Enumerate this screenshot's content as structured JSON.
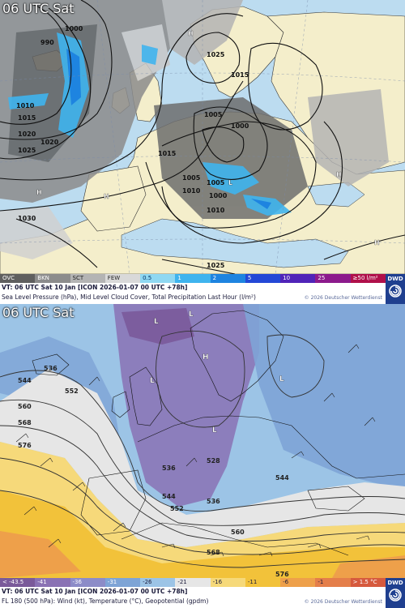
{
  "top_panel": {
    "valid_time": "06 UTC Sat",
    "info_line1": "VT: 06 UTC Sat   10 Jan [ICON 2026-01-07 00 UTC +78h]",
    "info_line2": "Sea Level Pressure (hPa), Mid Level Cloud Cover, Total Precipitation Last Hour (l/m²)",
    "copyright": "© 2026 Deutscher Wetterdienst",
    "logo_text": "DWD",
    "legend": [
      {
        "label": "OVC",
        "color": "#5f5f5f",
        "text_color": "#ffffff"
      },
      {
        "label": "BKN",
        "color": "#8c8c8c",
        "text_color": "#ffffff"
      },
      {
        "label": "SCT",
        "color": "#b4b4b4",
        "text_color": "#222222"
      },
      {
        "label": "FEW",
        "color": "#d9d9d9",
        "text_color": "#222222"
      },
      {
        "label": "0.5",
        "color": "#8fd8f2",
        "text_color": "#003366"
      },
      {
        "label": "1",
        "color": "#3fb4ee",
        "text_color": "#ffffff"
      },
      {
        "label": "2",
        "color": "#1e84e0",
        "text_color": "#ffffff"
      },
      {
        "label": "5",
        "color": "#2448d6",
        "text_color": "#ffffff"
      },
      {
        "label": "10",
        "color": "#5024b8",
        "text_color": "#ffffff"
      },
      {
        "label": "25",
        "color": "#8c1a8c",
        "text_color": "#ffffff"
      },
      {
        "label": "≥50 l/m²",
        "color": "#b0104a",
        "text_color": "#ffffff"
      }
    ],
    "isobar_labels": [
      "1000",
      "990",
      "1010",
      "1015",
      "1020",
      "1025",
      "1030",
      "1005",
      "1000",
      "1005",
      "1010",
      "1015",
      "1020",
      "1025",
      "1015",
      "1010",
      "1005",
      "1000",
      "1025"
    ],
    "pressure_centers": [
      "H",
      "H",
      "L",
      "L",
      "H",
      "H",
      "H"
    ]
  },
  "bottom_panel": {
    "valid_time": "06 UTC Sat",
    "info_line1": "VT: 06 UTC Sat   10 Jan [ICON 2026-01-07 00 UTC +78h]",
    "info_line2": "FL 180 (500 hPa): Wind (kt), Temperature (°C), Geopotential (gpdm)",
    "copyright": "© 2026 Deutscher Wetterdienst",
    "logo_text": "DWD",
    "legend": [
      {
        "label": "< -43.5",
        "color": "#7a5a9a",
        "text_color": "#ffffff"
      },
      {
        "label": "-41",
        "color": "#8a72b4",
        "text_color": "#ffffff"
      },
      {
        "label": "-36",
        "color": "#8c8cc8",
        "text_color": "#ffffff"
      },
      {
        "label": "-31",
        "color": "#7ea4d6",
        "text_color": "#ffffff"
      },
      {
        "label": "-26",
        "color": "#9cc4e6",
        "text_color": "#1a1a3a"
      },
      {
        "label": "-21",
        "color": "#e6e6e6",
        "text_color": "#1a1a3a"
      },
      {
        "label": "-16",
        "color": "#f6d97a",
        "text_color": "#1a1a3a"
      },
      {
        "label": "-11",
        "color": "#f2c23a",
        "text_color": "#1a1a3a"
      },
      {
        "label": "-6",
        "color": "#eea04a",
        "text_color": "#1a1a3a"
      },
      {
        "label": "-1",
        "color": "#e47e4a",
        "text_color": "#1a1a3a"
      },
      {
        "label": "> 1.5 °C",
        "color": "#d65a3e",
        "text_color": "#ffffff"
      }
    ],
    "geopotential_labels": [
      "536",
      "544",
      "552",
      "560",
      "568",
      "576",
      "528",
      "536",
      "536",
      "544",
      "552",
      "560",
      "568",
      "576",
      "544"
    ],
    "centers": [
      "L",
      "L",
      "L",
      "H",
      "L",
      "L"
    ]
  }
}
